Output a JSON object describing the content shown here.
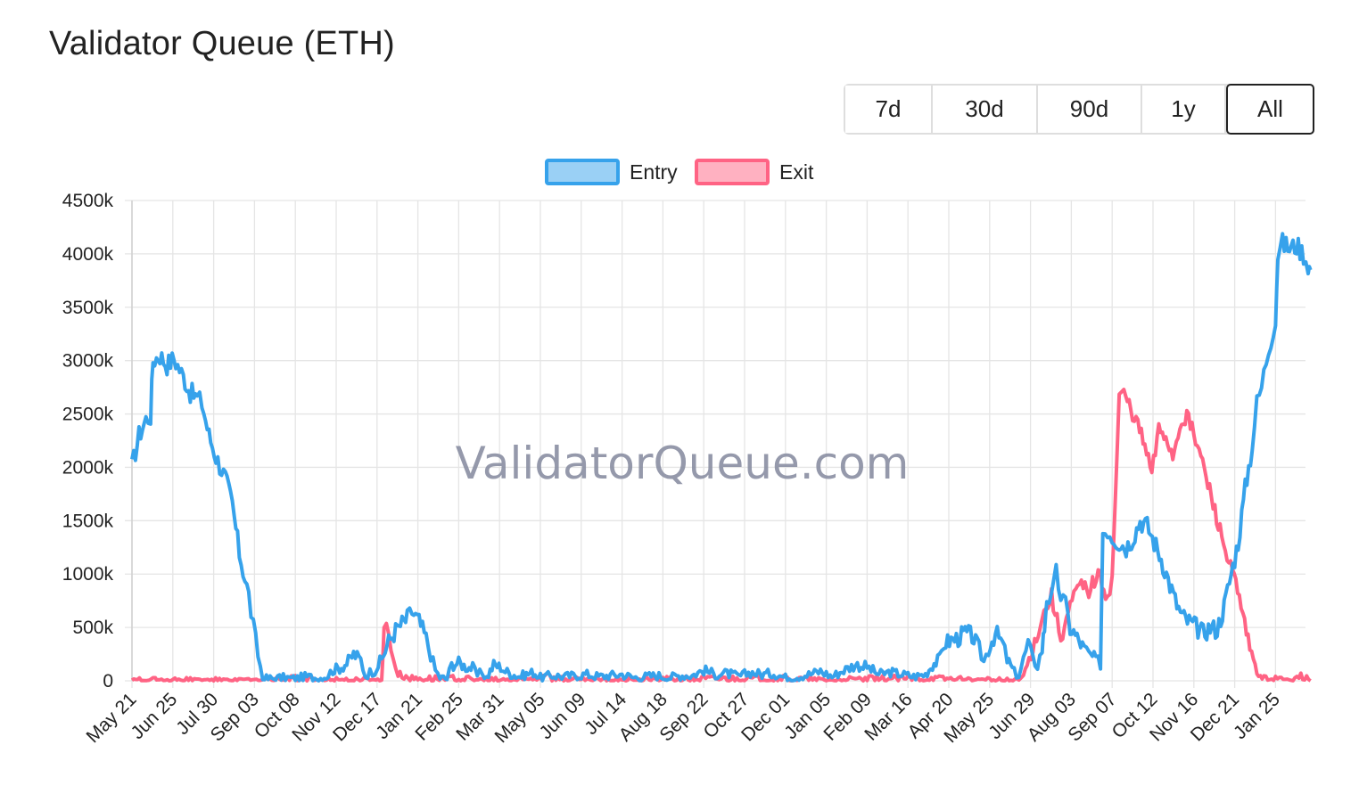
{
  "page": {
    "title": "Validator Queue (ETH)"
  },
  "range_buttons": [
    {
      "label": "7d",
      "active": false
    },
    {
      "label": "30d",
      "active": false
    },
    {
      "label": "90d",
      "active": false
    },
    {
      "label": "1y",
      "active": false
    },
    {
      "label": "All",
      "active": true
    }
  ],
  "watermark": "ValidatorQueue.com",
  "colors": {
    "entry_line": "#36A2EB",
    "entry_fill": "#9AD0F5",
    "exit_line": "#FF6384",
    "exit_fill": "#FFB1C1",
    "grid": "#e5e5e5",
    "axis_text": "#222222"
  },
  "chart_data": {
    "type": "line",
    "title": "",
    "xlabel": "",
    "ylabel": "",
    "ylim": [
      0,
      4500000
    ],
    "y_ticks": [
      "0",
      "500k",
      "1000k",
      "1500k",
      "2000k",
      "2500k",
      "3000k",
      "3500k",
      "4000k",
      "4500k"
    ],
    "x_ticks": [
      "May 21",
      "Jun 25",
      "Jul 30",
      "Sep 03",
      "Oct 08",
      "Nov 12",
      "Dec 17",
      "Jan 21",
      "Feb 25",
      "Mar 31",
      "May 05",
      "Jun 09",
      "Jul 14",
      "Aug 18",
      "Sep 22",
      "Oct 27",
      "Dec 01",
      "Jan 05",
      "Feb 09",
      "Mar 16",
      "Apr 20",
      "May 25",
      "Jun 29",
      "Aug 03",
      "Sep 07",
      "Oct 12",
      "Nov 16",
      "Dec 21",
      "Jan 25"
    ],
    "legend": {
      "position": "top-center"
    },
    "grid": true,
    "series": [
      {
        "name": "Entry",
        "points": [
          [
            0,
            2000000
          ],
          [
            0.3,
            2300000
          ],
          [
            0.6,
            2450000
          ],
          [
            0.8,
            2480000
          ],
          [
            0.9,
            3000000
          ],
          [
            1.2,
            3050000
          ],
          [
            1.5,
            2960000
          ],
          [
            1.8,
            3020000
          ],
          [
            2.2,
            2850000
          ],
          [
            2.5,
            2700000
          ],
          [
            2.8,
            2650000
          ],
          [
            3.0,
            2600000
          ],
          [
            3.3,
            2300000
          ],
          [
            3.6,
            2100000
          ],
          [
            4.0,
            1900000
          ],
          [
            4.3,
            1650000
          ],
          [
            4.6,
            1200000
          ],
          [
            5.0,
            800000
          ],
          [
            5.2,
            500000
          ],
          [
            5.4,
            250000
          ],
          [
            5.6,
            20000
          ],
          [
            6.0,
            20000
          ],
          [
            6.4,
            30000
          ],
          [
            7.0,
            20000
          ],
          [
            7.5,
            40000
          ],
          [
            8.0,
            20000
          ],
          [
            8.4,
            50000
          ],
          [
            8.6,
            100000
          ],
          [
            8.9,
            120000
          ],
          [
            9.2,
            160000
          ],
          [
            9.5,
            250000
          ],
          [
            9.8,
            200000
          ],
          [
            10.0,
            50000
          ],
          [
            10.2,
            80000
          ],
          [
            10.4,
            100000
          ],
          [
            10.7,
            200000
          ],
          [
            11.0,
            370000
          ],
          [
            11.3,
            470000
          ],
          [
            11.5,
            520000
          ],
          [
            11.8,
            580000
          ],
          [
            12.0,
            650000
          ],
          [
            12.3,
            550000
          ],
          [
            12.6,
            400000
          ],
          [
            12.8,
            250000
          ],
          [
            13.0,
            100000
          ],
          [
            13.2,
            30000
          ],
          [
            13.5,
            20000
          ],
          [
            13.7,
            150000
          ],
          [
            14.0,
            170000
          ],
          [
            14.3,
            130000
          ],
          [
            14.6,
            120000
          ],
          [
            14.8,
            50000
          ],
          [
            15.0,
            80000
          ],
          [
            15.2,
            30000
          ],
          [
            15.5,
            150000
          ],
          [
            15.8,
            130000
          ],
          [
            16.0,
            90000
          ],
          [
            16.3,
            60000
          ],
          [
            16.6,
            40000
          ],
          [
            16.9,
            60000
          ],
          [
            17.2,
            80000
          ],
          [
            17.5,
            30000
          ],
          [
            18.0,
            50000
          ],
          [
            18.5,
            40000
          ],
          [
            19.0,
            50000
          ],
          [
            19.5,
            60000
          ],
          [
            20.0,
            40000
          ],
          [
            20.5,
            50000
          ],
          [
            21.0,
            60000
          ],
          [
            21.5,
            30000
          ],
          [
            22.0,
            40000
          ],
          [
            22.5,
            50000
          ],
          [
            23.0,
            30000
          ],
          [
            23.5,
            50000
          ],
          [
            24.0,
            50000
          ],
          [
            24.5,
            100000
          ],
          [
            25.0,
            60000
          ],
          [
            25.5,
            70000
          ],
          [
            26.0,
            40000
          ],
          [
            26.5,
            80000
          ],
          [
            27.0,
            60000
          ],
          [
            27.5,
            70000
          ],
          [
            28.0,
            30000
          ],
          [
            28.5,
            40000
          ],
          [
            29.0,
            60000
          ],
          [
            29.5,
            90000
          ],
          [
            30.0,
            40000
          ],
          [
            30.5,
            100000
          ],
          [
            31.0,
            150000
          ],
          [
            31.5,
            130000
          ],
          [
            32.0,
            60000
          ],
          [
            32.5,
            80000
          ],
          [
            33.0,
            60000
          ],
          [
            33.5,
            40000
          ],
          [
            34.0,
            60000
          ],
          [
            34.3,
            150000
          ],
          [
            34.6,
            200000
          ],
          [
            34.8,
            350000
          ],
          [
            35.1,
            380000
          ],
          [
            35.4,
            400000
          ],
          [
            35.7,
            450000
          ],
          [
            36.0,
            420000
          ],
          [
            36.3,
            300000
          ],
          [
            36.5,
            180000
          ],
          [
            36.7,
            300000
          ],
          [
            37.0,
            450000
          ],
          [
            37.3,
            350000
          ],
          [
            37.5,
            200000
          ],
          [
            37.8,
            80000
          ],
          [
            38.0,
            50000
          ],
          [
            38.2,
            200000
          ],
          [
            38.4,
            350000
          ],
          [
            38.6,
            200000
          ],
          [
            38.8,
            150000
          ],
          [
            39.0,
            300000
          ],
          [
            39.1,
            500000
          ],
          [
            39.2,
            800000
          ],
          [
            39.4,
            750000
          ],
          [
            39.6,
            1000000
          ],
          [
            39.8,
            800000
          ],
          [
            40.0,
            700000
          ],
          [
            40.2,
            500000
          ],
          [
            40.5,
            400000
          ],
          [
            40.8,
            300000
          ],
          [
            41.0,
            250000
          ],
          [
            41.3,
            200000
          ],
          [
            41.5,
            160000
          ],
          [
            41.6,
            1400000
          ],
          [
            41.8,
            1420000
          ],
          [
            42.0,
            1350000
          ],
          [
            42.3,
            1300000
          ],
          [
            42.6,
            1250000
          ],
          [
            42.9,
            1350000
          ],
          [
            43.2,
            1500000
          ],
          [
            43.5,
            1450000
          ],
          [
            43.8,
            1300000
          ],
          [
            44.1,
            1150000
          ],
          [
            44.4,
            950000
          ],
          [
            44.7,
            750000
          ],
          [
            45.0,
            600000
          ],
          [
            45.3,
            550000
          ],
          [
            45.6,
            500000
          ],
          [
            45.9,
            450000
          ],
          [
            46.2,
            500000
          ],
          [
            46.5,
            480000
          ],
          [
            46.8,
            700000
          ],
          [
            47.1,
            1000000
          ],
          [
            47.4,
            1300000
          ],
          [
            47.7,
            1800000
          ],
          [
            48.0,
            2200000
          ],
          [
            48.2,
            2600000
          ],
          [
            48.4,
            2750000
          ],
          [
            48.6,
            3000000
          ],
          [
            48.8,
            3200000
          ],
          [
            49.0,
            3400000
          ],
          [
            49.1,
            4000000
          ],
          [
            49.3,
            4100000
          ],
          [
            49.6,
            4050000
          ],
          [
            49.9,
            4080000
          ],
          [
            50.2,
            4000000
          ],
          [
            50.4,
            3900000
          ],
          [
            50.5,
            3850000
          ]
        ]
      },
      {
        "name": "Exit",
        "points": [
          [
            0,
            0
          ],
          [
            0.8,
            0
          ],
          [
            1.0,
            60000
          ],
          [
            1.1,
            0
          ],
          [
            3.0,
            0
          ],
          [
            6.0,
            0
          ],
          [
            7.0,
            20000
          ],
          [
            8.0,
            10000
          ],
          [
            10.7,
            0
          ],
          [
            10.8,
            520000
          ],
          [
            11.0,
            450000
          ],
          [
            11.2,
            200000
          ],
          [
            11.4,
            60000
          ],
          [
            12.0,
            20000
          ],
          [
            14.0,
            20000
          ],
          [
            15.0,
            0
          ],
          [
            17.0,
            10000
          ],
          [
            17.6,
            40000
          ],
          [
            17.8,
            100000
          ],
          [
            18.0,
            20000
          ],
          [
            20.0,
            0
          ],
          [
            25.0,
            20000
          ],
          [
            28.0,
            20000
          ],
          [
            30.0,
            0
          ],
          [
            32.0,
            20000
          ],
          [
            35.0,
            20000
          ],
          [
            36.5,
            0
          ],
          [
            38.0,
            0
          ],
          [
            38.2,
            50000
          ],
          [
            38.6,
            300000
          ],
          [
            39.0,
            600000
          ],
          [
            39.4,
            800000
          ],
          [
            39.8,
            400000
          ],
          [
            40.2,
            700000
          ],
          [
            40.6,
            900000
          ],
          [
            41.0,
            850000
          ],
          [
            41.4,
            1000000
          ],
          [
            41.8,
            800000
          ],
          [
            42.0,
            950000
          ],
          [
            42.3,
            2650000
          ],
          [
            42.5,
            2700000
          ],
          [
            42.8,
            2550000
          ],
          [
            43.1,
            2400000
          ],
          [
            43.4,
            2200000
          ],
          [
            43.7,
            1950000
          ],
          [
            44.0,
            2350000
          ],
          [
            44.3,
            2300000
          ],
          [
            44.6,
            2100000
          ],
          [
            44.9,
            2400000
          ],
          [
            45.2,
            2500000
          ],
          [
            45.5,
            2300000
          ],
          [
            45.8,
            2100000
          ],
          [
            46.1,
            1850000
          ],
          [
            46.4,
            1600000
          ],
          [
            46.7,
            1350000
          ],
          [
            47.0,
            1100000
          ],
          [
            47.3,
            900000
          ],
          [
            47.6,
            600000
          ],
          [
            47.9,
            300000
          ],
          [
            48.2,
            80000
          ],
          [
            48.5,
            20000
          ],
          [
            49.0,
            20000
          ],
          [
            49.5,
            0
          ],
          [
            50.0,
            60000
          ],
          [
            50.5,
            0
          ]
        ]
      }
    ]
  }
}
